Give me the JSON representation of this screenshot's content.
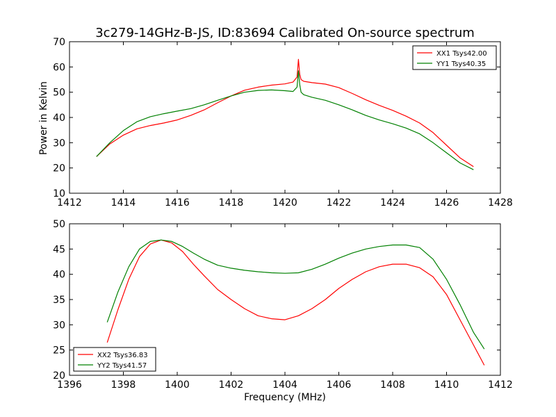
{
  "figure": {
    "title": "3c279-14GHz-B-JS, ID:83694 Calibrated On-source spectrum",
    "ylabel": "Power in Kelvin",
    "xlabel": "Frequency (MHz)",
    "colors": {
      "XX": "#ff0000",
      "YY": "#008000"
    }
  },
  "chart_data": [
    {
      "type": "line",
      "title": "3c279-14GHz-B-JS, ID:83694 Calibrated On-source spectrum",
      "xlabel": "",
      "ylabel": "Power in Kelvin",
      "xlim": [
        1412,
        1428
      ],
      "ylim": [
        10,
        70
      ],
      "xticks": [
        1412,
        1414,
        1416,
        1418,
        1420,
        1422,
        1424,
        1426,
        1428
      ],
      "yticks": [
        10,
        20,
        30,
        40,
        50,
        60,
        70
      ],
      "grid": false,
      "legend_position": "top-right",
      "series": [
        {
          "name": "XX1 Tsys42.00",
          "color": "#ff0000",
          "x": [
            1413.0,
            1413.5,
            1414.0,
            1414.5,
            1415.0,
            1415.5,
            1416.0,
            1416.5,
            1417.0,
            1417.5,
            1418.0,
            1418.5,
            1419.0,
            1419.5,
            1420.0,
            1420.3,
            1420.45,
            1420.5,
            1420.55,
            1420.6,
            1420.7,
            1421.0,
            1421.5,
            1422.0,
            1422.5,
            1423.0,
            1423.5,
            1424.0,
            1424.5,
            1425.0,
            1425.5,
            1426.0,
            1426.5,
            1427.0
          ],
          "y": [
            24.5,
            29.5,
            33.0,
            35.5,
            36.8,
            37.8,
            39.0,
            40.8,
            43.0,
            45.8,
            48.5,
            50.8,
            52.0,
            52.8,
            53.3,
            54.0,
            56.0,
            63.0,
            57.0,
            55.0,
            54.3,
            53.8,
            53.2,
            51.8,
            49.5,
            47.0,
            44.8,
            42.8,
            40.5,
            37.8,
            34.0,
            29.0,
            24.0,
            20.5
          ]
        },
        {
          "name": "YY1 Tsys40.35",
          "color": "#008000",
          "x": [
            1413.0,
            1413.5,
            1414.0,
            1414.5,
            1415.0,
            1415.5,
            1416.0,
            1416.5,
            1417.0,
            1417.5,
            1418.0,
            1418.5,
            1419.0,
            1419.5,
            1420.0,
            1420.3,
            1420.45,
            1420.5,
            1420.55,
            1420.6,
            1420.7,
            1421.0,
            1421.5,
            1422.0,
            1422.5,
            1423.0,
            1423.5,
            1424.0,
            1424.5,
            1425.0,
            1425.5,
            1426.0,
            1426.5,
            1427.0
          ],
          "y": [
            24.5,
            30.0,
            34.8,
            38.3,
            40.3,
            41.5,
            42.5,
            43.5,
            45.0,
            46.8,
            48.5,
            50.0,
            50.7,
            50.9,
            50.6,
            50.3,
            52.0,
            58.5,
            53.0,
            50.0,
            49.0,
            48.0,
            46.8,
            45.0,
            43.0,
            40.8,
            39.0,
            37.5,
            35.8,
            33.5,
            30.0,
            26.0,
            22.0,
            19.3
          ]
        }
      ]
    },
    {
      "type": "line",
      "title": "",
      "xlabel": "Frequency (MHz)",
      "ylabel": "",
      "xlim": [
        1396,
        1412
      ],
      "ylim": [
        20,
        50
      ],
      "xticks": [
        1396,
        1398,
        1400,
        1402,
        1404,
        1406,
        1408,
        1410,
        1412
      ],
      "yticks": [
        20,
        25,
        30,
        35,
        40,
        45,
        50
      ],
      "grid": false,
      "legend_position": "bottom-left",
      "series": [
        {
          "name": "XX2 Tsys36.83",
          "color": "#ff0000",
          "x": [
            1397.4,
            1397.8,
            1398.2,
            1398.6,
            1399.0,
            1399.4,
            1399.8,
            1400.2,
            1400.6,
            1401.0,
            1401.5,
            1402.0,
            1402.5,
            1403.0,
            1403.5,
            1404.0,
            1404.5,
            1405.0,
            1405.5,
            1406.0,
            1406.5,
            1407.0,
            1407.5,
            1408.0,
            1408.5,
            1409.0,
            1409.5,
            1410.0,
            1410.5,
            1411.0,
            1411.4
          ],
          "y": [
            26.5,
            33.0,
            39.0,
            43.5,
            46.0,
            46.8,
            46.2,
            44.5,
            42.0,
            39.7,
            37.0,
            35.0,
            33.2,
            31.8,
            31.2,
            31.0,
            31.8,
            33.2,
            35.0,
            37.2,
            39.0,
            40.5,
            41.5,
            42.0,
            42.0,
            41.3,
            39.5,
            36.0,
            31.0,
            26.0,
            22.0
          ]
        },
        {
          "name": "YY2 Tsys41.57",
          "color": "#008000",
          "x": [
            1397.4,
            1397.8,
            1398.2,
            1398.6,
            1399.0,
            1399.4,
            1399.8,
            1400.2,
            1400.6,
            1401.0,
            1401.5,
            1402.0,
            1402.5,
            1403.0,
            1403.5,
            1404.0,
            1404.5,
            1405.0,
            1405.5,
            1406.0,
            1406.5,
            1407.0,
            1407.5,
            1408.0,
            1408.5,
            1409.0,
            1409.5,
            1410.0,
            1410.5,
            1411.0,
            1411.4
          ],
          "y": [
            30.5,
            36.5,
            41.5,
            45.0,
            46.5,
            46.8,
            46.5,
            45.5,
            44.2,
            43.0,
            41.8,
            41.2,
            40.8,
            40.5,
            40.3,
            40.2,
            40.3,
            41.0,
            42.0,
            43.2,
            44.2,
            45.0,
            45.5,
            45.8,
            45.8,
            45.3,
            43.0,
            39.0,
            34.0,
            28.5,
            25.2
          ]
        }
      ]
    }
  ]
}
